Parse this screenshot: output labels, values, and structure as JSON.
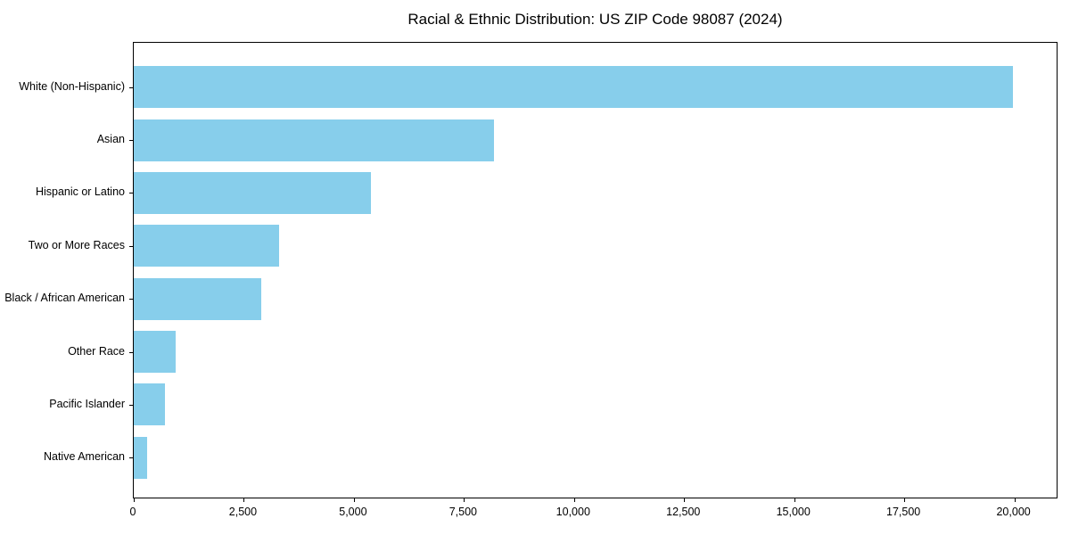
{
  "chart_data": {
    "type": "bar",
    "orientation": "horizontal",
    "title": "Racial & Ethnic Distribution: US ZIP Code 98087 (2024)",
    "categories": [
      "White (Non-Hispanic)",
      "Asian",
      "Hispanic or Latino",
      "Two or More Races",
      "Black / African American",
      "Other Race",
      "Pacific Islander",
      "Native American"
    ],
    "values": [
      20000,
      8200,
      5400,
      3300,
      2900,
      950,
      700,
      300
    ],
    "xlabel": "",
    "ylabel": "",
    "xlim": [
      0,
      21000
    ],
    "x_ticks": [
      0,
      2500,
      5000,
      7500,
      10000,
      12500,
      15000,
      17500,
      20000
    ],
    "x_tick_labels": [
      "0",
      "2,500",
      "5,000",
      "7,500",
      "10,000",
      "12,500",
      "15,000",
      "17,500",
      "20,000"
    ],
    "bar_color": "#87CEEB",
    "grid": false,
    "background_color": "#ffffff",
    "spine_color": "#000000"
  }
}
